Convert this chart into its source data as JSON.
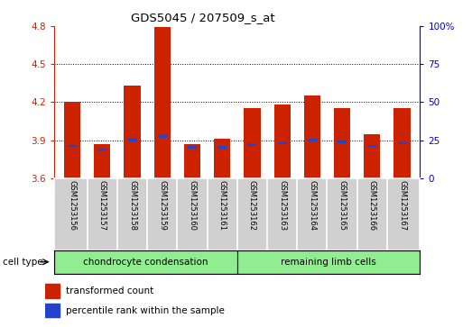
{
  "title": "GDS5045 / 207509_s_at",
  "samples": [
    "GSM1253156",
    "GSM1253157",
    "GSM1253158",
    "GSM1253159",
    "GSM1253160",
    "GSM1253161",
    "GSM1253162",
    "GSM1253163",
    "GSM1253164",
    "GSM1253165",
    "GSM1253166",
    "GSM1253167"
  ],
  "red_values": [
    4.2,
    3.87,
    4.33,
    4.79,
    3.87,
    3.91,
    4.15,
    4.18,
    4.25,
    4.15,
    3.95,
    4.15
  ],
  "blue_values": [
    3.855,
    3.825,
    3.9,
    3.93,
    3.845,
    3.845,
    3.865,
    3.875,
    3.9,
    3.885,
    3.855,
    3.875
  ],
  "ylim_left": [
    3.6,
    4.8
  ],
  "ylim_right": [
    0,
    100
  ],
  "yticks_left": [
    3.6,
    3.9,
    4.2,
    4.5,
    4.8
  ],
  "yticks_right": [
    0,
    25,
    50,
    75,
    100
  ],
  "bar_color_red": "#cc2200",
  "bar_color_blue": "#2244cc",
  "bar_width": 0.55,
  "group1_label": "chondrocyte condensation",
  "group2_label": "remaining limb cells",
  "cell_type_label": "cell type",
  "legend_red": "transformed count",
  "legend_blue": "percentile rank within the sample",
  "group_color": "#90ee90",
  "tick_label_area_color": "#d0d0d0",
  "base_value": 3.6,
  "right_axis_color": "#0000cc",
  "left_axis_color": "#cc2200",
  "grid_lines": [
    3.9,
    4.2,
    4.5
  ],
  "right_tick_labels": [
    "0",
    "25",
    "50",
    "75",
    "100%"
  ]
}
